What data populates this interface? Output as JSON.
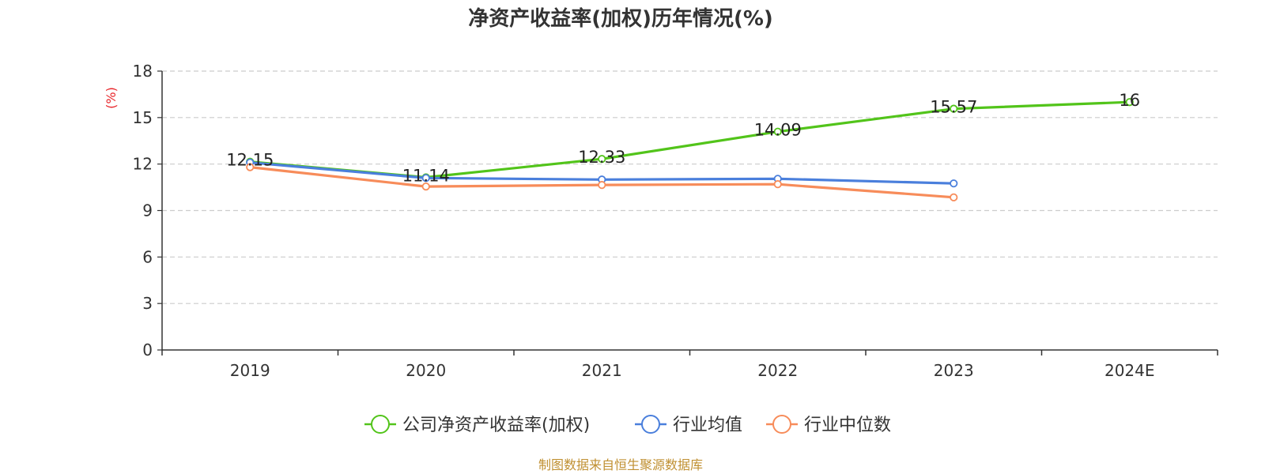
{
  "chart_data": {
    "type": "line",
    "title": "净资产收益率(加权)历年情况(%)",
    "ylabel": "(%)",
    "ylabel_color": "#e8262b",
    "categories": [
      "2019",
      "2020",
      "2021",
      "2022",
      "2023",
      "2024E"
    ],
    "ylim": [
      0,
      18
    ],
    "yticks": [
      0,
      3,
      6,
      9,
      12,
      15,
      18
    ],
    "grid": true,
    "legend_position": "bottom",
    "series": [
      {
        "name": "公司净资产收益率(加权)",
        "color": "#52c41a",
        "values": [
          12.15,
          11.14,
          12.33,
          14.09,
          15.57,
          16
        ],
        "data_labels": [
          "12.15",
          "11.14",
          "12.33",
          "14.09",
          "15.57",
          "16"
        ]
      },
      {
        "name": "行业均值",
        "color": "#4a7fdc",
        "values": [
          12.1,
          11.1,
          11.0,
          11.05,
          10.75,
          null
        ]
      },
      {
        "name": "行业中位数",
        "color": "#f78c5a",
        "values": [
          11.8,
          10.55,
          10.65,
          10.7,
          9.85,
          null
        ]
      }
    ]
  },
  "source": {
    "text": "制图数据来自恒生聚源数据库",
    "color": "#c09032"
  }
}
